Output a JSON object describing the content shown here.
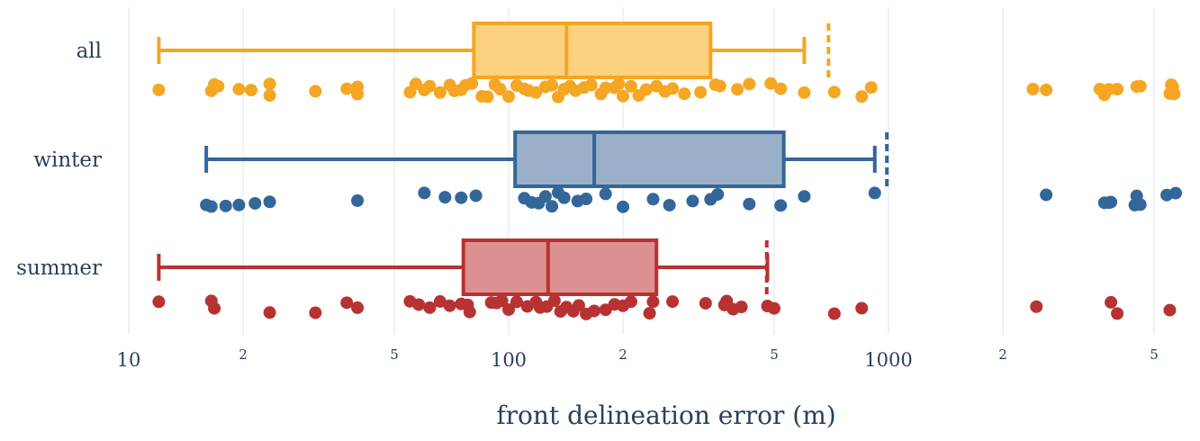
{
  "chart_data": {
    "type": "box",
    "orientation": "horizontal",
    "x_scale": "log",
    "xlim": [
      10,
      5700
    ],
    "xlabel": "front delineation error (m)",
    "x_ticks": [
      {
        "value": 10,
        "label": "10",
        "major": true
      },
      {
        "value": 20,
        "label": "2",
        "major": false
      },
      {
        "value": 50,
        "label": "5",
        "major": false
      },
      {
        "value": 100,
        "label": "100",
        "major": true
      },
      {
        "value": 200,
        "label": "2",
        "major": false
      },
      {
        "value": 500,
        "label": "5",
        "major": false
      },
      {
        "value": 1000,
        "label": "1000",
        "major": true
      },
      {
        "value": 2000,
        "label": "2",
        "major": false
      },
      {
        "value": 5000,
        "label": "5",
        "major": false
      }
    ],
    "gridlines": [
      10,
      20,
      50,
      100,
      200,
      500,
      1000,
      2000,
      5000
    ],
    "grid": true,
    "series": [
      {
        "name": "all",
        "color": "#f5a623",
        "fill": "#fcd280",
        "whisker_low": 12,
        "q1": 81,
        "median": 142,
        "q3": 340,
        "whisker_high": 600,
        "mean": 695,
        "points": [
          12,
          16.5,
          16.8,
          17.2,
          19.5,
          21,
          23.5,
          23.5,
          31,
          37.5,
          40,
          40,
          55,
          57,
          60,
          62,
          66,
          70,
          72,
          75,
          77,
          80,
          85,
          88,
          92,
          95,
          100,
          105,
          110,
          113,
          118,
          125,
          130,
          135,
          140,
          145,
          150,
          158,
          165,
          175,
          180,
          190,
          195,
          200,
          210,
          220,
          230,
          245,
          258,
          270,
          290,
          320,
          350,
          360,
          400,
          430,
          490,
          520,
          600,
          720,
          850,
          900,
          2400,
          2600,
          3600,
          3700,
          3800,
          4000,
          4500,
          4600,
          5500,
          5550,
          5600,
          5650
        ]
      },
      {
        "name": "winter",
        "color": "#336699",
        "fill": "#9ab0c9",
        "whisker_low": 16,
        "q1": 104,
        "median": 168,
        "q3": 530,
        "whisker_high": 920,
        "mean": 990,
        "points": [
          16,
          16.5,
          18,
          19.5,
          21.5,
          23.5,
          40,
          60,
          68,
          75,
          82,
          110,
          115,
          120,
          125,
          130,
          135,
          140,
          152,
          160,
          180,
          200,
          240,
          265,
          305,
          340,
          355,
          430,
          520,
          600,
          920,
          2600,
          3700,
          3800,
          3850,
          4450,
          4500,
          4600,
          5400,
          5700
        ]
      },
      {
        "name": "summer",
        "color": "#b83232",
        "fill": "#dc9090",
        "whisker_low": 12,
        "q1": 76,
        "median": 127,
        "q3": 245,
        "whisker_high": 480,
        "mean": 478,
        "points": [
          12,
          16.5,
          16.8,
          23.5,
          31,
          37.5,
          40,
          55,
          58,
          62,
          66,
          70,
          75,
          78,
          79,
          90,
          93,
          96,
          100,
          105,
          112,
          118,
          121,
          126,
          132,
          137,
          142,
          148,
          153,
          160,
          168,
          180,
          190,
          200,
          210,
          235,
          240,
          270,
          330,
          370,
          375,
          390,
          410,
          480,
          500,
          720,
          850,
          2450,
          3850,
          4000,
          5500
        ]
      }
    ]
  }
}
